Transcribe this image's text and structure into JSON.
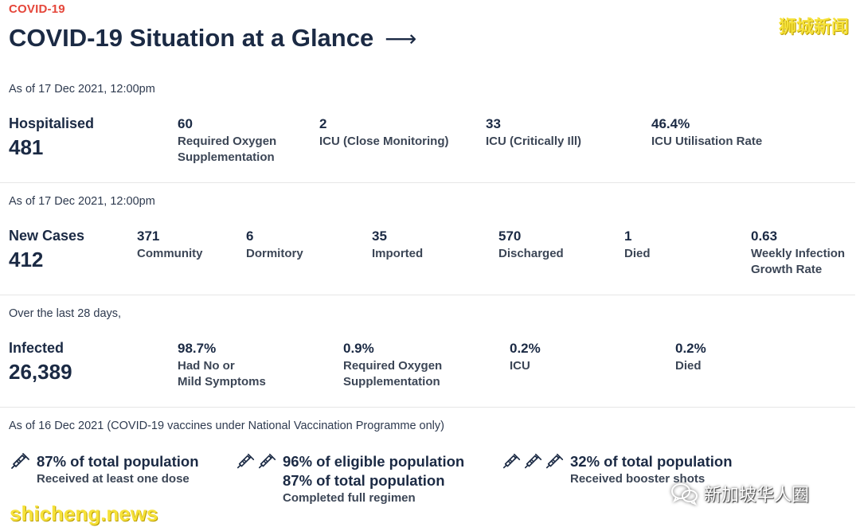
{
  "header": {
    "kicker": "COVID-19",
    "title": "COVID-19 Situation at a Glance",
    "arrow": "⟶"
  },
  "watermarks": {
    "top_right": "狮城新闻",
    "bottom_right": "新加坡华人圈",
    "bottom_left": "shicheng.news"
  },
  "hospital": {
    "asof": "As of 17 Dec 2021, 12:00pm",
    "label": "Hospitalised",
    "value": "481",
    "stats": [
      {
        "value": "60",
        "label": "Required Oxygen\nSupplementation"
      },
      {
        "value": "2",
        "label": "ICU (Close Monitoring)"
      },
      {
        "value": "33",
        "label": "ICU (Critically Ill)"
      },
      {
        "value": "46.4%",
        "label": "ICU Utilisation Rate"
      }
    ]
  },
  "cases": {
    "asof": "As of 17 Dec 2021, 12:00pm",
    "label": "New Cases",
    "value": "412",
    "stats": [
      {
        "value": "371",
        "label": "Community"
      },
      {
        "value": "6",
        "label": "Dormitory"
      },
      {
        "value": "35",
        "label": "Imported"
      },
      {
        "value": "570",
        "label": "Discharged"
      },
      {
        "value": "1",
        "label": "Died"
      },
      {
        "value": "0.63",
        "label": "Weekly Infection\nGrowth Rate"
      }
    ]
  },
  "infected": {
    "asof": "Over the last 28 days,",
    "label": "Infected",
    "value": "26,389",
    "stats": [
      {
        "value": "98.7%",
        "label": "Had No or\nMild Symptoms"
      },
      {
        "value": "0.9%",
        "label": "Required Oxygen\nSupplementation"
      },
      {
        "value": "0.2%",
        "label": "ICU"
      },
      {
        "value": "0.2%",
        "label": "Died"
      }
    ]
  },
  "vaccination": {
    "asof": "As of 16 Dec 2021 (COVID-19 vaccines under National Vaccination Programme only)",
    "items": [
      {
        "icon": "syringe-icon",
        "value": "87% of total population",
        "label": "Received at least one dose"
      },
      {
        "icon": "syringe-icon",
        "value": "96% of eligible population",
        "value2": "87% of total population",
        "label": "Completed full regimen"
      },
      {
        "icon": "syringe-icon",
        "value": "32% of total population",
        "label": "Received booster shots"
      }
    ]
  }
}
